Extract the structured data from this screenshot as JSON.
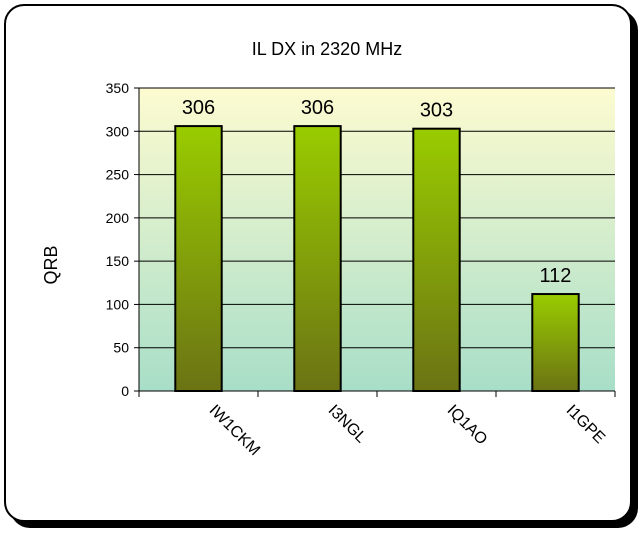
{
  "chart_data": {
    "type": "bar",
    "title": "IL DX in 2320 MHz",
    "xlabel": "",
    "ylabel": "QRB",
    "categories": [
      "IW1CKM",
      "I3NGL",
      "IQ1AO",
      "I1GPE"
    ],
    "values": [
      306,
      306,
      303,
      112
    ],
    "data_labels": [
      "306",
      "306",
      "303",
      "112"
    ],
    "ylim": [
      0,
      350
    ],
    "yticks": [
      "0",
      "50",
      "100",
      "150",
      "200",
      "250",
      "300",
      "350"
    ],
    "grid": true,
    "legend": "none",
    "colors": {
      "bar_top": "#99cc00",
      "bar_bottom": "#6b7314",
      "plot_top": "#fdfbd0",
      "plot_bottom": "#a8dec8",
      "gridline": "#000000"
    }
  }
}
